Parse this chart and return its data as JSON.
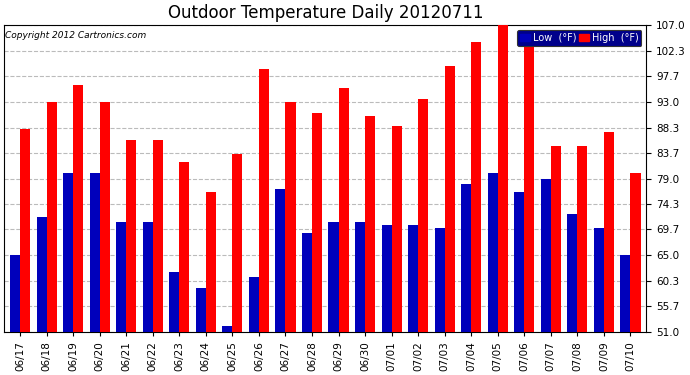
{
  "title": "Outdoor Temperature Daily 20120711",
  "copyright": "Copyright 2012 Cartronics.com",
  "categories": [
    "06/17",
    "06/18",
    "06/19",
    "06/20",
    "06/21",
    "06/22",
    "06/23",
    "06/24",
    "06/25",
    "06/26",
    "06/27",
    "06/28",
    "06/29",
    "06/30",
    "07/01",
    "07/02",
    "07/03",
    "07/04",
    "07/05",
    "07/06",
    "07/07",
    "07/08",
    "07/09",
    "07/10"
  ],
  "high_values": [
    88.0,
    93.0,
    96.0,
    93.0,
    86.0,
    86.0,
    82.0,
    76.5,
    83.5,
    99.0,
    93.0,
    91.0,
    95.5,
    90.5,
    88.5,
    93.5,
    99.5,
    104.0,
    107.0,
    104.5,
    85.0,
    85.0,
    87.5,
    80.0
  ],
  "low_values": [
    65.0,
    72.0,
    80.0,
    80.0,
    71.0,
    71.0,
    62.0,
    59.0,
    52.0,
    61.0,
    77.0,
    69.0,
    71.0,
    71.0,
    70.5,
    70.5,
    70.0,
    78.0,
    80.0,
    76.5,
    79.0,
    72.5,
    70.0,
    65.0
  ],
  "high_color": "#ff0000",
  "low_color": "#0000bb",
  "bg_color": "#ffffff",
  "plot_bg_color": "#ffffff",
  "grid_color": "#bbbbbb",
  "ymin": 51.0,
  "ymax": 107.0,
  "yticks": [
    51.0,
    55.7,
    60.3,
    65.0,
    69.7,
    74.3,
    79.0,
    83.7,
    88.3,
    93.0,
    97.7,
    102.3,
    107.0
  ],
  "bar_width": 0.38,
  "title_fontsize": 12,
  "tick_fontsize": 7.5,
  "legend_low_label": "Low  (°F)",
  "legend_high_label": "High  (°F)"
}
